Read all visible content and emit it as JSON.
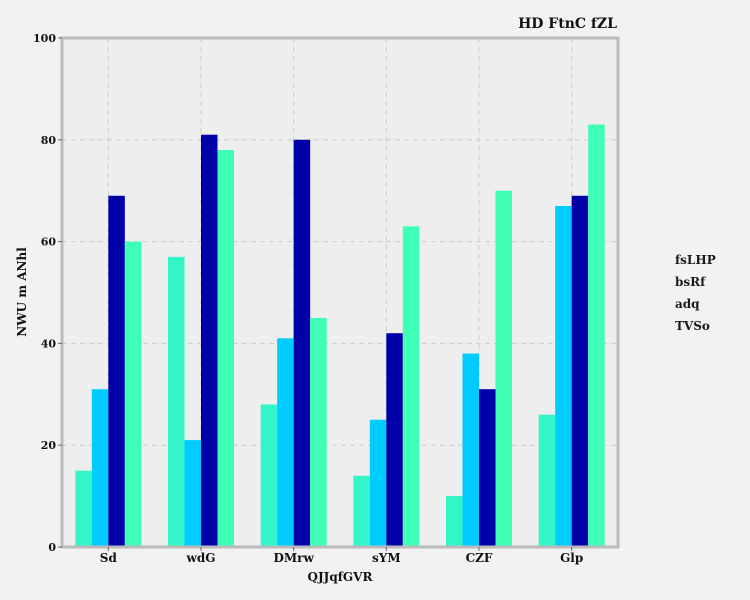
{
  "chart_data": {
    "type": "bar",
    "title": "HD FtnC fZL",
    "xlabel": "QJJqfGVR",
    "ylabel": "NWU m ANhl",
    "categories": [
      "Sd",
      "wdG",
      "DMrw",
      "sYM",
      "CZF",
      "Glp"
    ],
    "ylim": [
      0,
      100
    ],
    "yticks": [
      0,
      20,
      40,
      60,
      80,
      100
    ],
    "grid": true,
    "legend_position": "right",
    "series": [
      {
        "name": "fsLHP",
        "color": "#33f5c8",
        "values": [
          15,
          57,
          28,
          14,
          10,
          26
        ]
      },
      {
        "name": "bsRf",
        "color": "#00ccff",
        "values": [
          31,
          21,
          41,
          25,
          38,
          67
        ]
      },
      {
        "name": "adq",
        "color": "#0000a8",
        "values": [
          69,
          81,
          80,
          42,
          31,
          69
        ]
      },
      {
        "name": "TVSo",
        "color": "#3dffb5",
        "values": [
          60,
          78,
          45,
          63,
          70,
          83
        ]
      }
    ]
  }
}
